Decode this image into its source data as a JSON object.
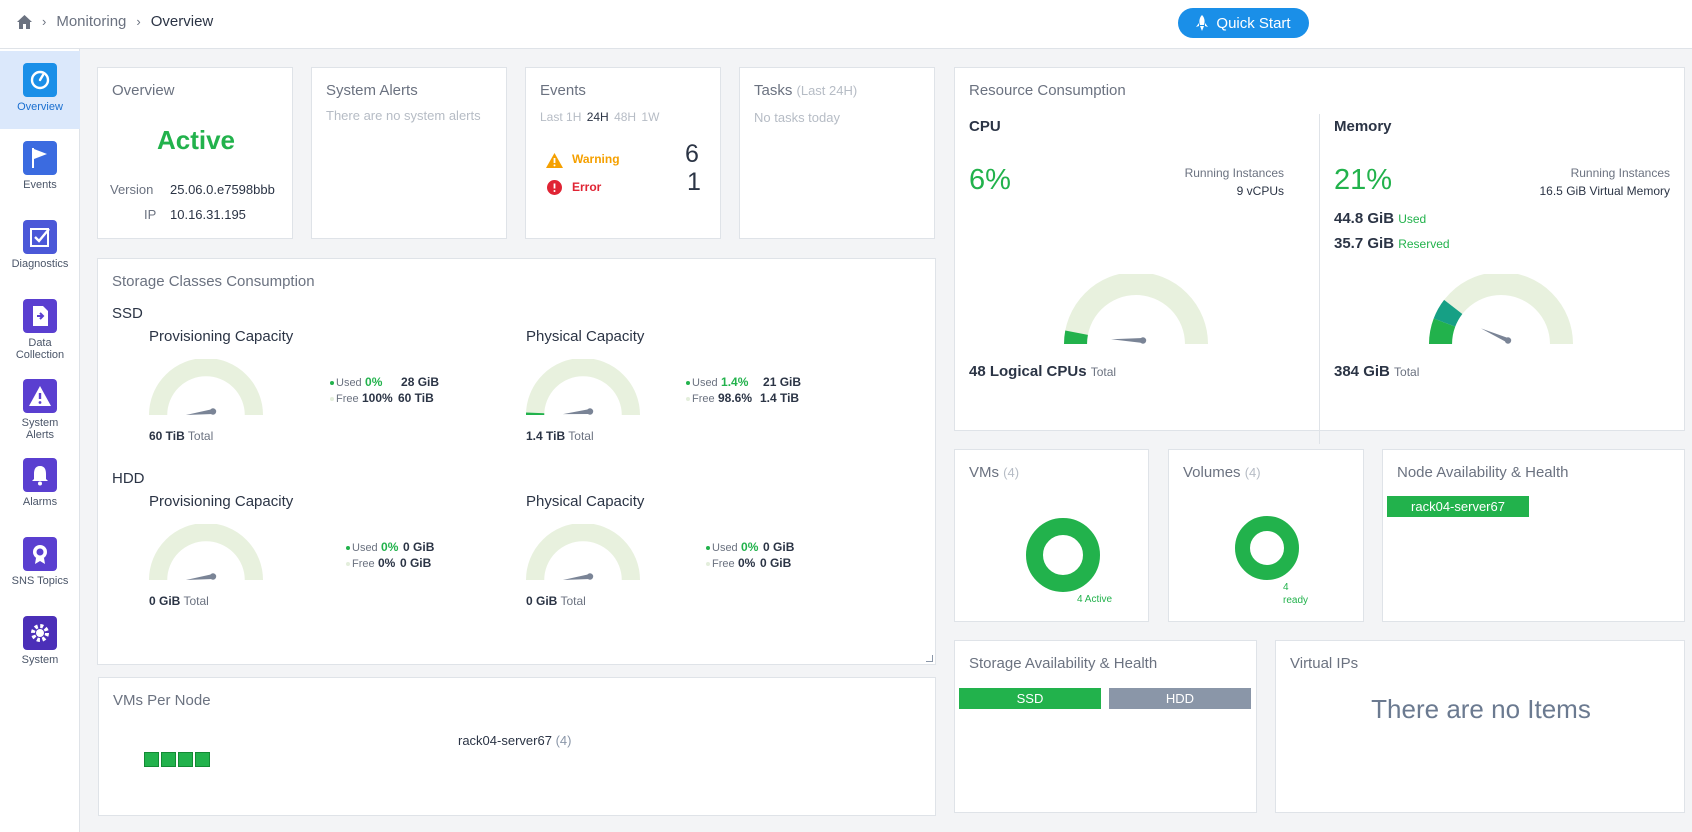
{
  "breadcrumb": {
    "section": "Monitoring",
    "page": "Overview"
  },
  "quick_start_label": "Quick Start",
  "sidebar": [
    {
      "label": "Overview",
      "color": "#1a8fe8"
    },
    {
      "label": "Events",
      "color": "#3b6be0"
    },
    {
      "label": "Diagnostics",
      "color": "#4b58d8"
    },
    {
      "label": "Data Collection",
      "color": "#5a3fd0"
    },
    {
      "label": "System Alerts",
      "color": "#5a3fd0"
    },
    {
      "label": "Alarms",
      "color": "#5a3fd0"
    },
    {
      "label": "SNS Topics",
      "color": "#5a3fd0"
    },
    {
      "label": "System",
      "color": "#4b2fb8"
    }
  ],
  "overview": {
    "title": "Overview",
    "status": "Active",
    "version_label": "Version",
    "version": "25.06.0.e7598bbb",
    "ip_label": "IP",
    "ip": "10.16.31.195"
  },
  "system_alerts": {
    "title": "System Alerts",
    "empty": "There are no system alerts"
  },
  "events": {
    "title": "Events",
    "filters": [
      "Last 1H",
      "24H",
      "48H",
      "1W"
    ],
    "warning_label": "Warning",
    "warning_count": "6",
    "error_label": "Error",
    "error_count": "1"
  },
  "tasks": {
    "title": "Tasks",
    "subtitle": "(Last 24H)",
    "empty": "No tasks today"
  },
  "storage_classes": {
    "title": "Storage Classes Consumption",
    "ssd": {
      "label": "SSD",
      "prov": {
        "title": "Provisioning Capacity",
        "total": "60 TiB",
        "total_label": "Total",
        "used_label": "Used",
        "used_pct": "0%",
        "used_val": "28 GiB",
        "free_label": "Free",
        "free_pct": "100%",
        "free_val": "60 TiB"
      },
      "phys": {
        "title": "Physical Capacity",
        "total": "1.4 TiB",
        "total_label": "Total",
        "used_label": "Used",
        "used_pct": "1.4%",
        "used_val": "21 GiB",
        "free_label": "Free",
        "free_pct": "98.6%",
        "free_val": "1.4 TiB"
      }
    },
    "hdd": {
      "label": "HDD",
      "prov": {
        "title": "Provisioning Capacity",
        "total": "0 GiB",
        "total_label": "Total",
        "used_label": "Used",
        "used_pct": "0%",
        "used_val": "0 GiB",
        "free_label": "Free",
        "free_pct": "0%",
        "free_val": "0 GiB"
      },
      "phys": {
        "title": "Physical Capacity",
        "total": "0 GiB",
        "total_label": "Total",
        "used_label": "Used",
        "used_pct": "0%",
        "used_val": "0 GiB",
        "free_label": "Free",
        "free_pct": "0%",
        "free_val": "0 GiB"
      }
    }
  },
  "vms_per_node": {
    "title": "VMs Per Node",
    "node": "rack04-server67",
    "count": "(4)",
    "vm_squares": 4
  },
  "resource": {
    "title": "Resource Consumption",
    "cpu": {
      "title": "CPU",
      "pct": "6%",
      "fraction": 0.06,
      "running_label": "Running Instances",
      "running_value": "9 vCPUs",
      "total": "48 Logical CPUs",
      "total_label": "Total"
    },
    "memory": {
      "title": "Memory",
      "pct": "21%",
      "fraction": 0.21,
      "running_label": "Running Instances",
      "running_value": "16.5 GiB Virtual Memory",
      "used": "44.8 GiB",
      "used_label": "Used",
      "reserved": "35.7 GiB",
      "reserved_label": "Reserved",
      "total": "384 GiB",
      "total_label": "Total"
    }
  },
  "vms": {
    "title": "VMs",
    "count": "(4)",
    "donut_num": "4",
    "donut_label": "Active"
  },
  "volumes": {
    "title": "Volumes",
    "count": "(4)",
    "donut_num": "4",
    "donut_label": "ready"
  },
  "node_health": {
    "title": "Node Availability & Health",
    "node": "rack04-server67"
  },
  "storage_health": {
    "title": "Storage Availability & Health",
    "ssd": "SSD",
    "hdd": "HDD"
  },
  "virtual_ips": {
    "title": "Virtual IPs",
    "empty": "There are no Items"
  },
  "colors": {
    "green": "#22b24c",
    "gauge_track": "#e8f1de",
    "accent": "#1a8fe8",
    "gray_bar": "#8a96a8",
    "warning": "#f5a000",
    "error": "#e02434"
  }
}
